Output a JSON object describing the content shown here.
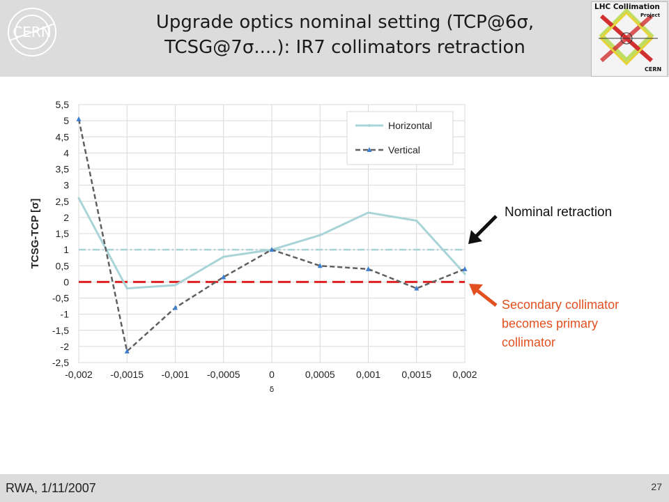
{
  "header": {
    "title_line1": "Upgrade optics nominal setting (TCP@6σ,",
    "title_line2": "TCSG@7σ....): IR7 collimators retraction",
    "cern_logo_text": "CERN",
    "lhc_logo_line1": "LHC Collimation",
    "lhc_logo_line2": "Project",
    "lhc_logo_line3": "CERN"
  },
  "annotations": {
    "nominal": "Nominal retraction",
    "secondary_line1": "Secondary collimator",
    "secondary_line2": "becomes primary",
    "secondary_line3": "collimator"
  },
  "footer": {
    "left": "RWA, 1/11/2007",
    "page": "27"
  },
  "colors": {
    "horizontal": "#a8d4d8",
    "vertical": "#5f5f5f",
    "marker": "#3e7fcf",
    "red_dash": "#e02020",
    "arrow_black": "#111111",
    "arrow_red": "#e2501f"
  },
  "chart_data": {
    "type": "line",
    "xlabel": "δ",
    "ylabel": "TCSG-TCP [σ]",
    "x": [
      -0.002,
      -0.0015,
      -0.001,
      -0.0005,
      0,
      0.0005,
      0.001,
      0.0015,
      0.002
    ],
    "xtick_labels": [
      "-0,002",
      "-0,0015",
      "-0,001",
      "-0,0005",
      "0",
      "0,0005",
      "0,001",
      "0,0015",
      "0,002"
    ],
    "ylim": [
      -2.5,
      5.5
    ],
    "ytick_labels": [
      "5,5",
      "5",
      "4,5",
      "4",
      "3,5",
      "3",
      "2,5",
      "2",
      "1,5",
      "1",
      "0,5",
      "0",
      "-0,5",
      "-1",
      "-1,5",
      "-2",
      "-2,5"
    ],
    "ytick_values": [
      5.5,
      5,
      4.5,
      4,
      3.5,
      3,
      2.5,
      2,
      1.5,
      1,
      0.5,
      0,
      -0.5,
      -1,
      -1.5,
      -2,
      -2.5
    ],
    "grid": true,
    "legend_position": "top-right",
    "series": [
      {
        "name": "Horizontal",
        "values": [
          2.6,
          -0.2,
          -0.1,
          0.78,
          1.0,
          1.45,
          2.15,
          1.9,
          0.25
        ]
      },
      {
        "name": "Vertical",
        "values": [
          5.05,
          -2.15,
          -0.8,
          0.15,
          1.0,
          0.5,
          0.4,
          -0.2,
          0.4
        ]
      }
    ],
    "reference_lines": [
      {
        "y": 1,
        "style": "dash-dot"
      },
      {
        "y": 0,
        "style": "dashed"
      }
    ]
  }
}
